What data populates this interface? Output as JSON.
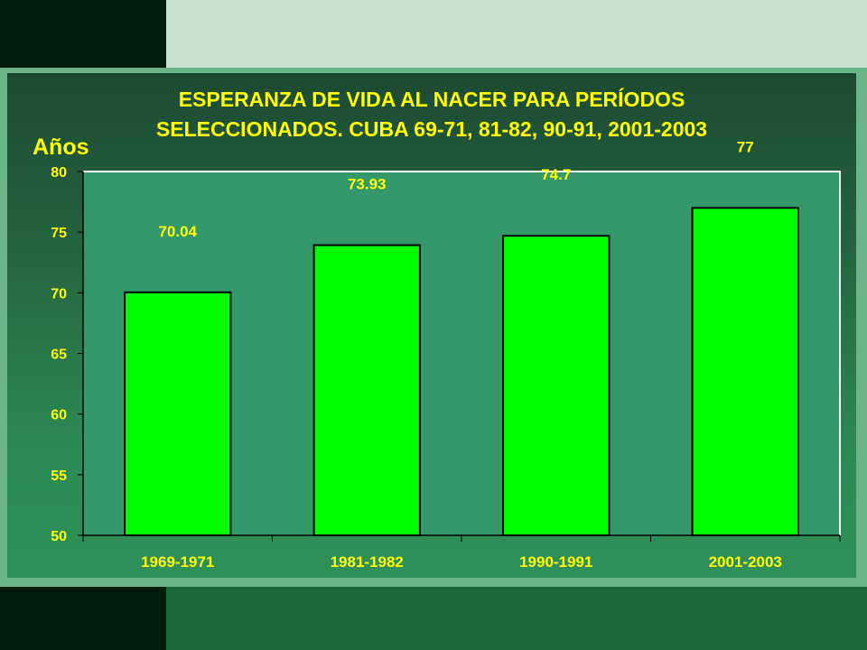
{
  "chart_data": {
    "type": "bar",
    "title_line1": "ESPERANZA DE VIDA AL NACER PARA PERÍODOS",
    "title_line2": "SELECCIONADOS. CUBA 69-71, 81-82, 90-91, 2001-2003",
    "ylabel": "Años",
    "xlabel": "",
    "categories": [
      "1969-1971",
      "1981-1982",
      "1990-1991",
      "2001-2003"
    ],
    "values": [
      70.04,
      73.93,
      74.7,
      77
    ],
    "value_labels": [
      "70.04",
      "73.93",
      "74.7",
      "77"
    ],
    "ylim": [
      50,
      80
    ],
    "yticks": [
      50,
      55,
      60,
      65,
      70,
      75,
      80
    ],
    "grid": false,
    "legend": "none"
  },
  "colors": {
    "bar_fill": "#00ff00",
    "plot_background": "#33996a",
    "text": "#ffff00",
    "axis": "#000000"
  }
}
